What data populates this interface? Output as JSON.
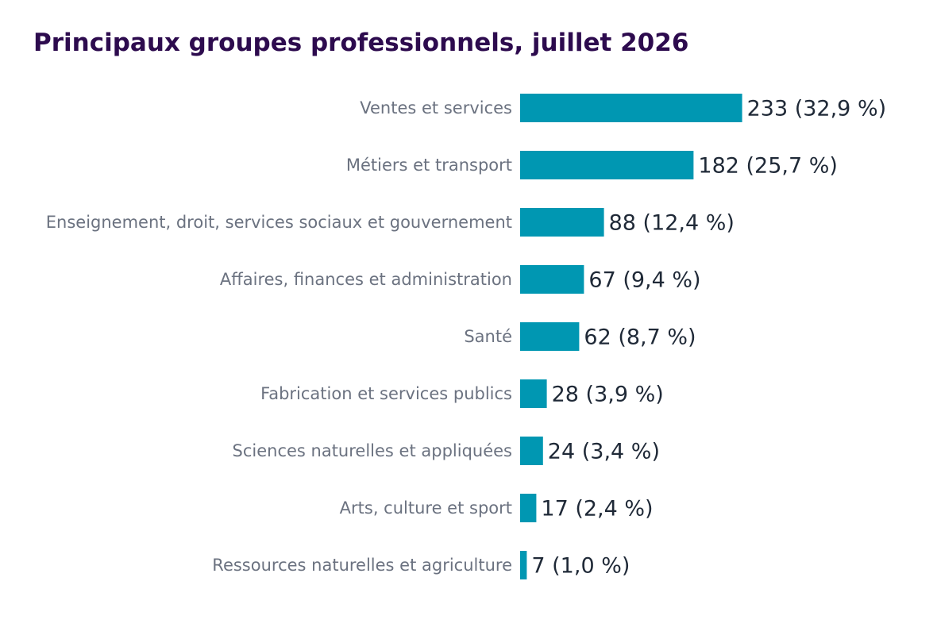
{
  "chart_data": {
    "type": "bar",
    "orientation": "horizontal",
    "title": "Principaux groupes professionnels, juillet 2026",
    "xlabel": "",
    "ylabel": "",
    "grid": false,
    "legend": "none",
    "bar_color": "#0097b2",
    "title_color": "#2d0b4e",
    "categories": [
      "Ventes et services",
      "Métiers et transport",
      "Enseignement, droit, services sociaux et gouvernement",
      "Affaires, finances et administration",
      "Santé",
      "Fabrication et services publics",
      "Sciences naturelles et appliquées",
      "Arts, culture et sport",
      "Ressources naturelles et agriculture"
    ],
    "values": [
      233,
      182,
      88,
      67,
      62,
      28,
      24,
      17,
      7
    ],
    "value_labels": [
      "233  (32,9 %)",
      "182  (25,7 %)",
      "88  (12,4 %)",
      "67  (9,4 %)",
      "62  (8,7 %)",
      "28  (3,9 %)",
      "24  (3,4 %)",
      "17  (2,4 %)",
      "7  (1,0 %)"
    ]
  }
}
